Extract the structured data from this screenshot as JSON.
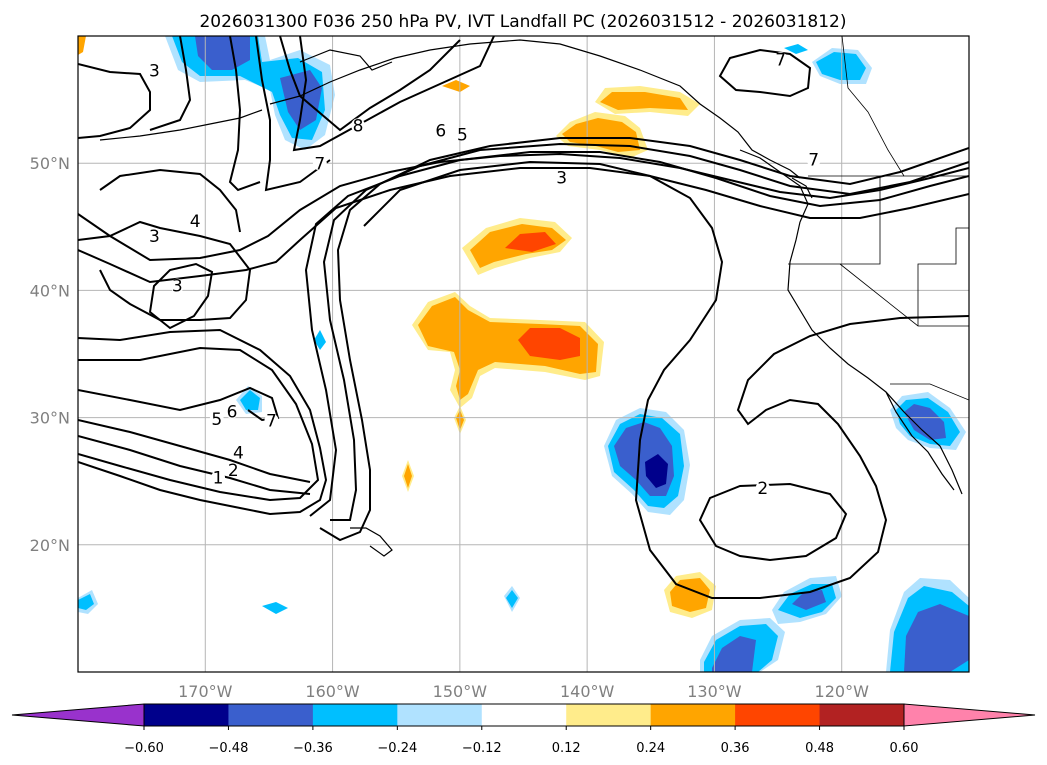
{
  "title": "2026031300 F036 250 hPa PV, IVT Landfall PC (2026031512 - 2026031812)",
  "map": {
    "projection": "PlateCarree",
    "lon_range": [
      -180,
      -110
    ],
    "lat_range": [
      10,
      60
    ],
    "lon_ticks": [
      {
        "lon": -170,
        "label": "170°W"
      },
      {
        "lon": -160,
        "label": "160°W"
      },
      {
        "lon": -150,
        "label": "150°W"
      },
      {
        "lon": -140,
        "label": "140°W"
      },
      {
        "lon": -130,
        "label": "130°W"
      },
      {
        "lon": -120,
        "label": "120°W"
      }
    ],
    "lat_ticks": [
      {
        "lat": 20,
        "label": "20°N"
      },
      {
        "lat": 30,
        "label": "30°N"
      },
      {
        "lat": 40,
        "label": "40°N"
      },
      {
        "lat": 50,
        "label": "50°N"
      }
    ],
    "gridlines": true,
    "pv_contour_labels": [
      {
        "text": "3",
        "lon": -174,
        "lat": 56.8
      },
      {
        "text": "8",
        "lon": -158,
        "lat": 52.5
      },
      {
        "text": "6",
        "lon": -151.5,
        "lat": 52.1
      },
      {
        "text": "5",
        "lon": -149.8,
        "lat": 51.8
      },
      {
        "text": "7",
        "lon": -161,
        "lat": 49.5
      },
      {
        "text": "3",
        "lon": -142,
        "lat": 48.4
      },
      {
        "text": "7",
        "lon": -124.8,
        "lat": 57.7
      },
      {
        "text": "7",
        "lon": -122.2,
        "lat": 49.8
      },
      {
        "text": "4",
        "lon": -170.8,
        "lat": 45.0
      },
      {
        "text": "3",
        "lon": -174,
        "lat": 43.8
      },
      {
        "text": "3",
        "lon": -172.2,
        "lat": 39.9
      },
      {
        "text": "6",
        "lon": -167.9,
        "lat": 30.0
      },
      {
        "text": "5",
        "lon": -169.1,
        "lat": 29.4
      },
      {
        "text": "7",
        "lon": -164.8,
        "lat": 29.3
      },
      {
        "text": "4",
        "lon": -167.4,
        "lat": 26.8
      },
      {
        "text": "2",
        "lon": -167.8,
        "lat": 25.4
      },
      {
        "text": "1",
        "lon": -169.0,
        "lat": 24.8
      },
      {
        "text": "2",
        "lon": -126.2,
        "lat": 24.0
      }
    ],
    "ivt_pc_features": [
      {
        "sign": "negative",
        "lon": -171,
        "lat": 58.5,
        "peak": -0.4
      },
      {
        "sign": "negative",
        "lon": -162,
        "lat": 55,
        "peak": -0.45
      },
      {
        "sign": "positive",
        "lon": -137,
        "lat": 55,
        "peak": 0.3
      },
      {
        "sign": "positive",
        "lon": -140.5,
        "lat": 51.5,
        "peak": 0.35
      },
      {
        "sign": "positive",
        "lon": -145,
        "lat": 43.5,
        "peak": 0.4
      },
      {
        "sign": "positive",
        "lon": -145,
        "lat": 35.5,
        "peak": 0.4
      },
      {
        "sign": "negative",
        "lon": -134.5,
        "lat": 26,
        "peak": -0.55
      },
      {
        "sign": "negative",
        "lon": -114,
        "lat": 29,
        "peak": -0.4
      },
      {
        "sign": "positive",
        "lon": -132.5,
        "lat": 16,
        "peak": 0.3
      },
      {
        "sign": "negative",
        "lon": -113.5,
        "lat": 13.5,
        "peak": -0.45
      },
      {
        "sign": "negative",
        "lon": -122.5,
        "lat": 15.5,
        "peak": -0.4
      },
      {
        "sign": "negative",
        "lon": -129,
        "lat": 12,
        "peak": -0.45
      },
      {
        "sign": "negative",
        "lon": -120,
        "lat": 57.8,
        "peak": -0.3
      }
    ]
  },
  "colorbar": {
    "levels": [
      -0.6,
      -0.48,
      -0.36,
      -0.24,
      -0.12,
      0.12,
      0.24,
      0.36,
      0.48,
      0.6
    ],
    "tick_labels": [
      "−0.60",
      "−0.48",
      "−0.36",
      "−0.24",
      "−0.12",
      "0.12",
      "0.24",
      "0.36",
      "0.48",
      "0.60"
    ],
    "colors": [
      "#9932cc",
      "#00008b",
      "#3a5fcd",
      "#00bfff",
      "#b0e2ff",
      "#ffffff",
      "#ffec8b",
      "#ffa500",
      "#ff4500",
      "#b22222",
      "#ff82ab"
    ],
    "extend": "both"
  }
}
